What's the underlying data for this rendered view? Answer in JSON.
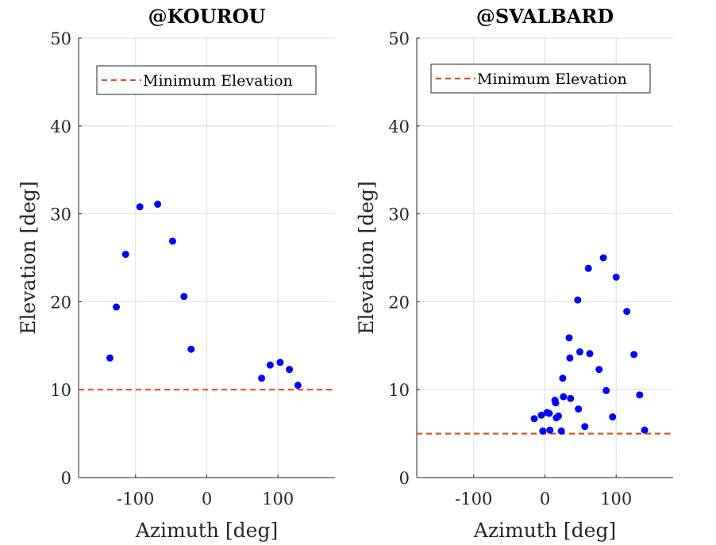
{
  "chart_data": [
    {
      "type": "scatter",
      "title": "@KOUROU",
      "xlabel": "Azimuth [deg]",
      "ylabel": "Elevation [deg]",
      "xlim": [
        -180,
        180
      ],
      "ylim": [
        0,
        50
      ],
      "xticks": [
        -100,
        0,
        100
      ],
      "yticks": [
        0,
        10,
        20,
        30,
        40,
        50
      ],
      "grid": true,
      "legend": {
        "placement": "top-left",
        "entries": [
          "Minimum Elevation"
        ]
      },
      "min_elevation": 10,
      "marker_color": "#0000ff",
      "line_color": "#d95319",
      "points": [
        [
          -136,
          13.6
        ],
        [
          -127,
          19.4
        ],
        [
          -114,
          25.4
        ],
        [
          -94,
          30.8
        ],
        [
          -69,
          31.1
        ],
        [
          -48,
          26.9
        ],
        [
          -32,
          20.6
        ],
        [
          -22,
          14.6
        ],
        [
          77,
          11.3
        ],
        [
          89,
          12.8
        ],
        [
          103,
          13.1
        ],
        [
          116,
          12.3
        ],
        [
          128,
          10.5
        ]
      ]
    },
    {
      "type": "scatter",
      "title": "@SVALBARD",
      "xlabel": "Azimuth [deg]",
      "ylabel": "Elevation [deg]",
      "xlim": [
        -180,
        180
      ],
      "ylim": [
        0,
        50
      ],
      "xticks": [
        -100,
        0,
        100
      ],
      "yticks": [
        0,
        10,
        20,
        30,
        40,
        50
      ],
      "grid": true,
      "legend": {
        "placement": "top-left",
        "entries": [
          "Minimum Elevation"
        ]
      },
      "min_elevation": 5,
      "marker_color": "#0000ff",
      "line_color": "#d95319",
      "points": [
        [
          -15,
          6.7
        ],
        [
          -5,
          7.1
        ],
        [
          -3,
          5.3
        ],
        [
          3,
          7.4
        ],
        [
          6,
          7.3
        ],
        [
          7,
          5.4
        ],
        [
          14,
          8.8
        ],
        [
          15,
          8.5
        ],
        [
          16,
          6.8
        ],
        [
          19,
          7.0
        ],
        [
          23,
          5.3
        ],
        [
          25,
          11.3
        ],
        [
          26,
          9.2
        ],
        [
          34,
          15.9
        ],
        [
          35,
          13.6
        ],
        [
          36,
          9.0
        ],
        [
          46,
          20.2
        ],
        [
          47,
          7.8
        ],
        [
          49,
          14.3
        ],
        [
          56,
          5.8
        ],
        [
          61,
          23.8
        ],
        [
          63,
          14.1
        ],
        [
          76,
          12.3
        ],
        [
          82,
          25.0
        ],
        [
          86,
          9.9
        ],
        [
          95,
          6.9
        ],
        [
          100,
          22.8
        ],
        [
          115,
          18.9
        ],
        [
          125,
          14.0
        ],
        [
          133,
          9.4
        ],
        [
          140,
          5.4
        ]
      ]
    }
  ]
}
